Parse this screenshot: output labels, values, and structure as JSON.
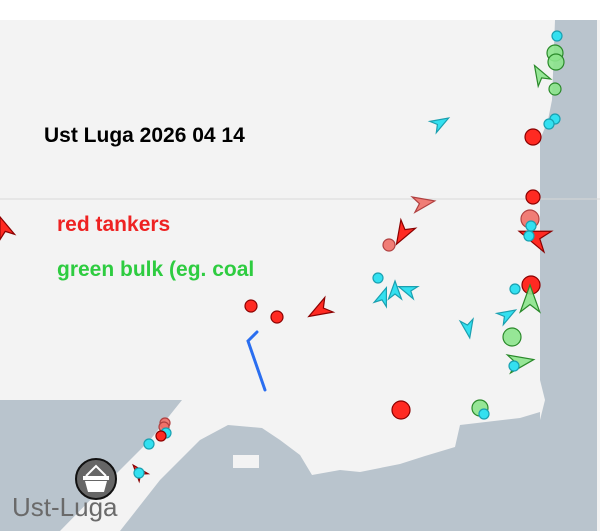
{
  "map": {
    "title": "Ust Luga 2026 04 14",
    "legend": [
      {
        "label": "red tankers",
        "color": "#ee2222"
      },
      {
        "label": "green bulk (eg. coal",
        "color": "#2ecc40"
      }
    ],
    "place_label": "Ust-Luga",
    "place_icon": "shopping-basket-icon",
    "colors": {
      "water": "#f3f3f3",
      "land": "#b9c4cd",
      "tanker": "#ff2a22",
      "tanker_faded": "#f07068",
      "bulk": "#8ce48c",
      "other": "#33e0f0",
      "route": "#2a6ef0"
    }
  }
}
